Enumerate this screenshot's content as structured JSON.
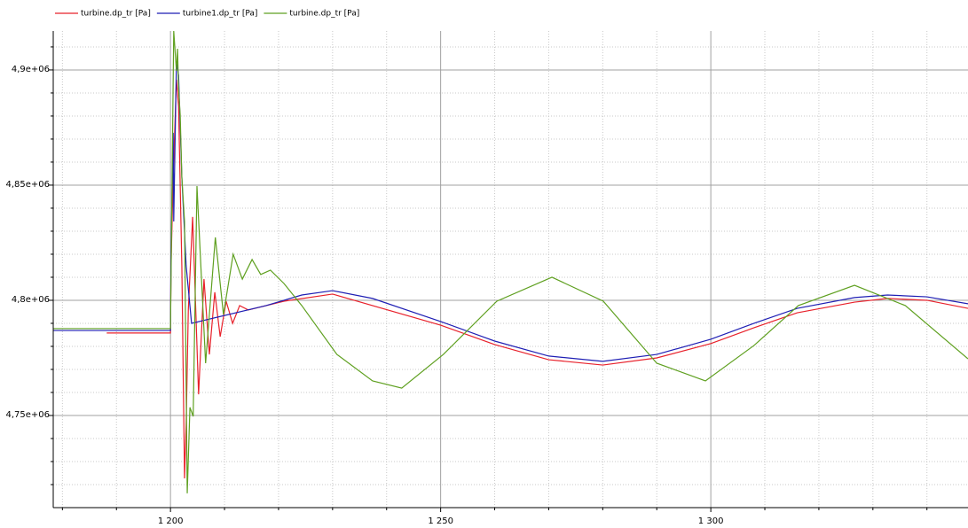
{
  "chart_data": {
    "type": "line",
    "xlim": [
      1178.3,
      1347.6
    ],
    "ylim": [
      4710000,
      4916900
    ],
    "xticks": [
      {
        "value": 1200,
        "label": "1 200"
      },
      {
        "value": 1250,
        "label": "1 250"
      },
      {
        "value": 1300,
        "label": "1 300"
      }
    ],
    "yticks": [
      {
        "value": 4750000,
        "label": "4,75e+06"
      },
      {
        "value": 4800000,
        "label": "4,8e+06"
      },
      {
        "value": 4850000,
        "label": "4,85e+06"
      },
      {
        "value": 4900000,
        "label": "4,9e+06"
      }
    ],
    "x_minor_ticks": [
      1180,
      1190,
      1210,
      1220,
      1230,
      1240,
      1260,
      1270,
      1280,
      1290,
      1310,
      1320,
      1330,
      1340
    ],
    "y_minor_ticks": [
      4720000,
      4730000,
      4740000,
      4760000,
      4770000,
      4780000,
      4790000,
      4810000,
      4820000,
      4830000,
      4840000,
      4860000,
      4870000,
      4880000,
      4890000,
      4910000
    ],
    "grid": true,
    "legend": "top-left",
    "series": [
      {
        "name": "turbine.dp_tr [Pa]",
        "color": "#e8212b",
        "x": [
          1188.2,
          1200,
          1200.1,
          1200.5,
          1201.1,
          1201.5,
          1202.1,
          1202.6,
          1202.9,
          1203.3,
          1204.1,
          1205.2,
          1206.2,
          1207.2,
          1208.2,
          1209.2,
          1210.3,
          1211.5,
          1212.8,
          1214.4,
          1221,
          1230,
          1250,
          1260,
          1270,
          1280,
          1290,
          1300,
          1308,
          1316,
          1326.6,
          1332.7,
          1340,
          1347.6
        ],
        "values": [
          4785800,
          4785800,
          4815000,
          4853500,
          4895800,
          4884200,
          4815000,
          4722700,
          4745800,
          4795800,
          4836200,
          4759200,
          4809200,
          4776500,
          4803500,
          4784200,
          4799600,
          4790000,
          4797700,
          4795800,
          4799600,
          4802700,
          4789200,
          4780800,
          4774200,
          4771900,
          4775000,
          4781200,
          4788100,
          4794600,
          4799200,
          4800800,
          4800000,
          4796500
        ]
      },
      {
        "name": "turbine1.dp_tr [Pa]",
        "color": "#1f1fb4",
        "x": [
          1178.3,
          1200,
          1200.1,
          1200.5,
          1200.6,
          1201.1,
          1201.5,
          1202.1,
          1202.9,
          1203.9,
          1217.7,
          1224.3,
          1230,
          1237.4,
          1250,
          1260,
          1270,
          1280,
          1290,
          1300,
          1308,
          1316,
          1326.6,
          1332.7,
          1340,
          1347.6
        ],
        "values": [
          4786900,
          4786900,
          4820800,
          4872700,
          4834200,
          4903500,
          4897700,
          4853500,
          4815000,
          4790000,
          4797700,
          4802300,
          4804200,
          4800800,
          4790800,
          4782300,
          4775800,
          4773500,
          4776500,
          4783100,
          4790000,
          4796500,
          4801200,
          4802300,
          4801500,
          4798500
        ]
      },
      {
        "name": "turbine.dp_tr [Pa]",
        "color": "#5fa020",
        "x": [
          1178.3,
          1200,
          1200.3,
          1200.6,
          1201.1,
          1201.3,
          1201.5,
          1201.8,
          1202.1,
          1202.6,
          1203.1,
          1203.6,
          1204.2,
          1204.9,
          1206.5,
          1208.3,
          1209.8,
          1211.6,
          1213.3,
          1215.1,
          1216.7,
          1218.5,
          1221,
          1224.3,
          1230.8,
          1237.4,
          1242.8,
          1250.5,
          1260.4,
          1270.6,
          1280.1,
          1290,
          1299,
          1308,
          1316.2,
          1326.6,
          1336,
          1347.6
        ],
        "values": [
          4787700,
          4787700,
          4853500,
          4916900,
          4899600,
          4909200,
          4891900,
          4880400,
          4853500,
          4834200,
          4716200,
          4753500,
          4749600,
          4849600,
          4772700,
          4827300,
          4793800,
          4820000,
          4809200,
          4817700,
          4811200,
          4813100,
          4807300,
          4797700,
          4776500,
          4765000,
          4761900,
          4776500,
          4799600,
          4810000,
          4799600,
          4772700,
          4765000,
          4780400,
          4797700,
          4806500,
          4797700,
          4774600
        ]
      }
    ]
  }
}
